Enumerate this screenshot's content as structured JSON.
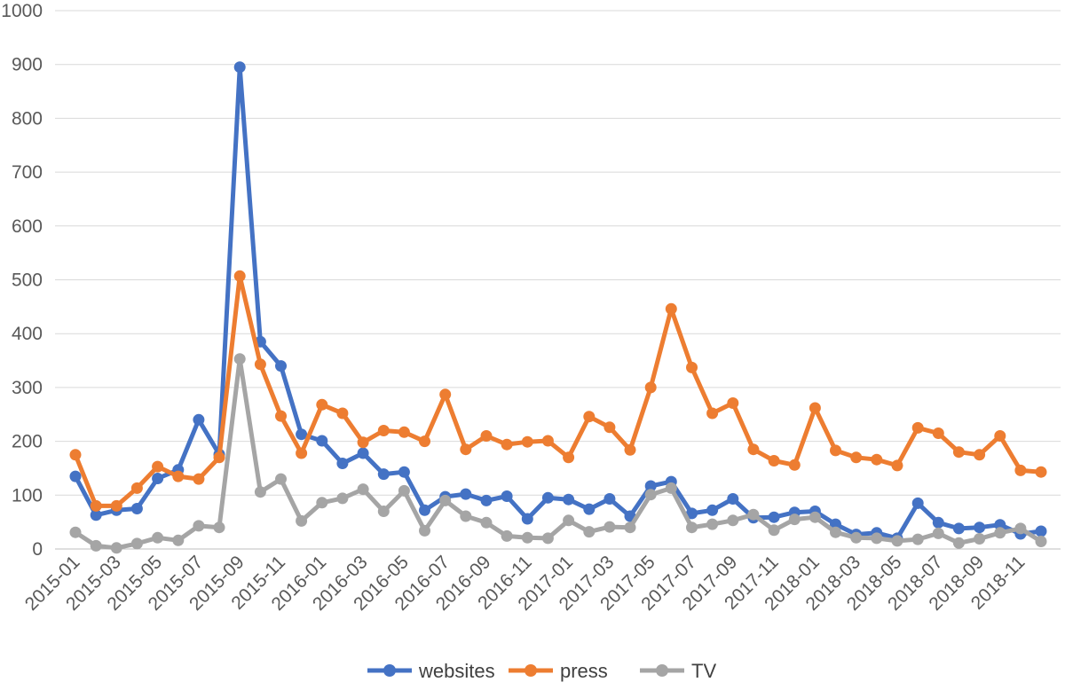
{
  "chart_data": {
    "type": "line",
    "title": "",
    "xlabel": "",
    "ylabel": "",
    "ylim": [
      0,
      1000
    ],
    "yticks": [
      0,
      100,
      200,
      300,
      400,
      500,
      600,
      700,
      800,
      900,
      1000
    ],
    "grid": true,
    "legend_position": "bottom",
    "x": [
      "2015-01",
      "2015-02",
      "2015-03",
      "2015-04",
      "2015-05",
      "2015-06",
      "2015-07",
      "2015-08",
      "2015-09",
      "2015-10",
      "2015-11",
      "2015-12",
      "2016-01",
      "2016-02",
      "2016-03",
      "2016-04",
      "2016-05",
      "2016-06",
      "2016-07",
      "2016-08",
      "2016-09",
      "2016-10",
      "2016-11",
      "2016-12",
      "2017-01",
      "2017-02",
      "2017-03",
      "2017-04",
      "2017-05",
      "2017-06",
      "2017-07",
      "2017-08",
      "2017-09",
      "2017-10",
      "2017-11",
      "2017-12",
      "2018-01",
      "2018-02",
      "2018-03",
      "2018-04",
      "2018-05",
      "2018-06",
      "2018-07",
      "2018-08",
      "2018-09",
      "2018-10",
      "2018-11",
      "2018-12"
    ],
    "x_tick_labels": [
      "2015-01",
      "2015-03",
      "2015-05",
      "2015-07",
      "2015-09",
      "2015-11",
      "2016-01",
      "2016-03",
      "2016-05",
      "2016-07",
      "2016-09",
      "2016-11",
      "2017-01",
      "2017-03",
      "2017-05",
      "2017-07",
      "2017-09",
      "2017-11",
      "2018-01",
      "2018-03",
      "2018-05",
      "2018-07",
      "2018-09",
      "2018-11"
    ],
    "series": [
      {
        "name": "websites",
        "color": "#4472C4",
        "values": [
          135,
          63,
          72,
          75,
          131,
          147,
          240,
          176,
          895,
          385,
          340,
          213,
          201,
          159,
          178,
          139,
          143,
          72,
          97,
          102,
          90,
          98,
          56,
          95,
          92,
          74,
          93,
          61,
          117,
          125,
          66,
          72,
          93,
          58,
          59,
          68,
          70,
          46,
          27,
          30,
          20,
          85,
          49,
          38,
          40,
          45,
          28,
          33
        ]
      },
      {
        "name": "press",
        "color": "#ED7D31",
        "values": [
          175,
          80,
          80,
          113,
          153,
          135,
          130,
          170,
          507,
          343,
          247,
          178,
          268,
          252,
          198,
          220,
          217,
          200,
          287,
          185,
          210,
          194,
          199,
          201,
          170,
          246,
          226,
          184,
          300,
          446,
          337,
          252,
          271,
          185,
          164,
          156,
          262,
          183,
          170,
          166,
          155,
          225,
          215,
          180,
          175,
          210,
          146,
          143
        ]
      },
      {
        "name": "TV",
        "color": "#A5A5A5",
        "values": [
          31,
          6,
          2,
          10,
          21,
          16,
          43,
          40,
          353,
          106,
          130,
          52,
          86,
          94,
          111,
          70,
          108,
          34,
          90,
          61,
          49,
          24,
          21,
          20,
          53,
          32,
          41,
          40,
          101,
          113,
          40,
          46,
          53,
          64,
          35,
          55,
          59,
          31,
          21,
          20,
          15,
          18,
          29,
          11,
          19,
          30,
          38,
          14
        ]
      }
    ]
  }
}
